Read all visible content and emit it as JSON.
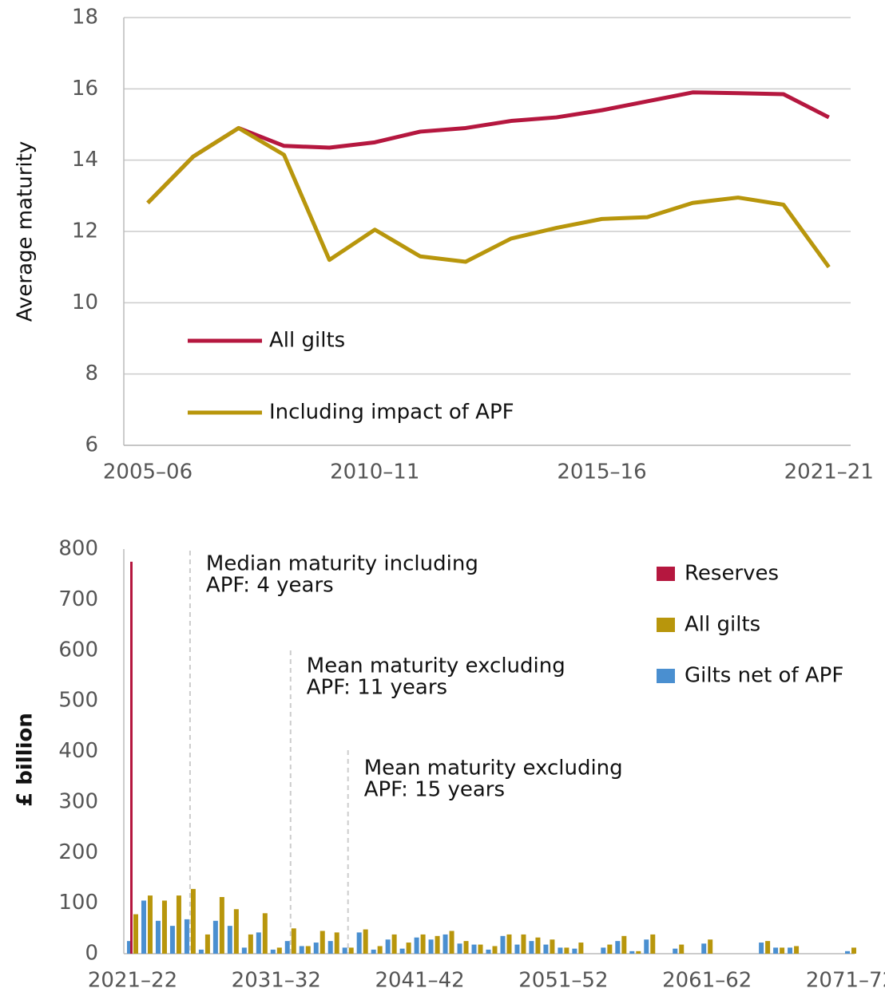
{
  "chart_data": [
    {
      "type": "line",
      "ylabel": "Average maturity",
      "categories": [
        "2005–06",
        null,
        null,
        null,
        null,
        "2010–11",
        null,
        null,
        null,
        null,
        "2015–16",
        null,
        null,
        null,
        null,
        "2021–21"
      ],
      "series": [
        {
          "name": "All gilts",
          "color": "#b5173f",
          "values": [
            12.8,
            14.1,
            14.9,
            14.4,
            14.35,
            14.5,
            14.8,
            14.9,
            15.1,
            15.2,
            15.4,
            15.65,
            15.9,
            15.88,
            15.85,
            15.2
          ]
        },
        {
          "name": "Including impact of APF",
          "color": "#b8960c",
          "values": [
            12.8,
            14.1,
            14.9,
            14.15,
            11.2,
            12.05,
            11.3,
            11.15,
            11.8,
            12.1,
            12.35,
            12.4,
            12.8,
            12.95,
            12.75,
            11.0
          ]
        }
      ],
      "ylim": [
        6,
        18
      ],
      "yticks": [
        6,
        8,
        10,
        12,
        14,
        16,
        18
      ],
      "grid": true
    },
    {
      "type": "bar",
      "ylabel": "£ billion",
      "categories": [
        "2021–22",
        null,
        null,
        null,
        null,
        null,
        null,
        null,
        null,
        null,
        "2031–32",
        null,
        null,
        null,
        null,
        null,
        null,
        null,
        null,
        null,
        "2041–42",
        null,
        null,
        null,
        null,
        null,
        null,
        null,
        null,
        null,
        "2051–52",
        null,
        null,
        null,
        null,
        null,
        null,
        null,
        null,
        null,
        "2061–62",
        null,
        null,
        null,
        null,
        null,
        null,
        null,
        null,
        null,
        "2071–72"
      ],
      "series": [
        {
          "name": "Reserves",
          "color": "#b5173f",
          "values": [
            775,
            0,
            0,
            0,
            0,
            0,
            0,
            0,
            0,
            0,
            0,
            0,
            0,
            0,
            0,
            0,
            0,
            0,
            0,
            0,
            0,
            0,
            0,
            0,
            0,
            0,
            0,
            0,
            0,
            0,
            0,
            0,
            0,
            0,
            0,
            0,
            0,
            0,
            0,
            0,
            0,
            0,
            0,
            0,
            0,
            0,
            0,
            0,
            0,
            0,
            0
          ]
        },
        {
          "name": "All gilts",
          "color": "#b8960c",
          "values": [
            78,
            115,
            105,
            115,
            128,
            38,
            112,
            88,
            38,
            80,
            12,
            50,
            15,
            45,
            42,
            12,
            48,
            15,
            38,
            22,
            38,
            35,
            45,
            25,
            18,
            15,
            38,
            38,
            32,
            28,
            12,
            22,
            0,
            18,
            35,
            5,
            38,
            0,
            18,
            0,
            28,
            0,
            0,
            0,
            25,
            12,
            15,
            0,
            0,
            0,
            12
          ]
        },
        {
          "name": "Gilts net of APF",
          "color": "#4a8fd0",
          "values": [
            25,
            105,
            65,
            55,
            68,
            8,
            65,
            55,
            12,
            42,
            8,
            25,
            15,
            22,
            25,
            12,
            42,
            8,
            28,
            10,
            32,
            28,
            38,
            20,
            18,
            8,
            35,
            18,
            25,
            18,
            12,
            10,
            0,
            12,
            25,
            5,
            28,
            0,
            10,
            0,
            20,
            0,
            0,
            0,
            22,
            12,
            12,
            0,
            0,
            0,
            5
          ]
        }
      ],
      "annotations": [
        {
          "x": 4,
          "lines": [
            "Median maturity including",
            "APF: 4 years"
          ]
        },
        {
          "x": 11,
          "lines": [
            "Mean maturity excluding",
            "APF: 11 years"
          ]
        },
        {
          "x": 15,
          "lines": [
            "Mean maturity excluding",
            "APF: 15 years"
          ]
        }
      ],
      "ylim": [
        0,
        800
      ],
      "yticks": [
        0,
        100,
        200,
        300,
        400,
        500,
        600,
        700,
        800
      ],
      "grid": false
    }
  ]
}
